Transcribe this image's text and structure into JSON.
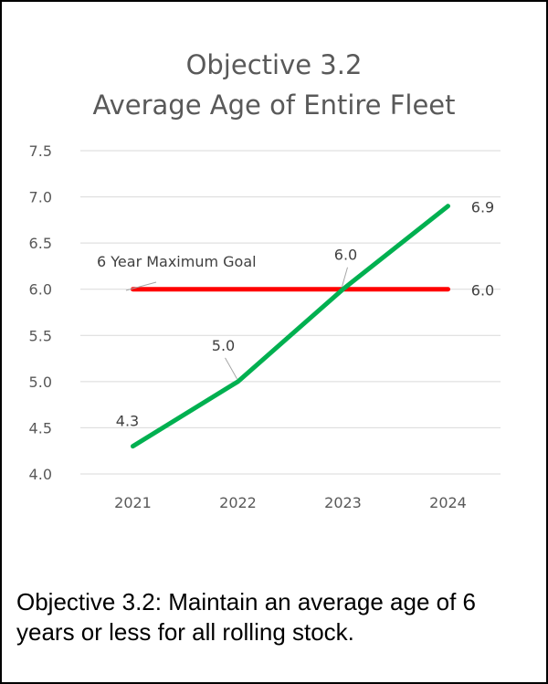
{
  "chart_data": {
    "type": "line",
    "title": "Objective 3.2",
    "subtitle": "Average Age of Entire Fleet",
    "categories": [
      "2021",
      "2022",
      "2023",
      "2024"
    ],
    "y_ticks": [
      "4.0",
      "4.5",
      "5.0",
      "5.5",
      "6.0",
      "6.5",
      "7.0",
      "7.5"
    ],
    "ylim": [
      4.0,
      7.5
    ],
    "grid": true,
    "legend": "none",
    "series": [
      {
        "values": [
          4.3,
          5.0,
          6.0,
          6.9
        ],
        "labels": [
          "4.3",
          "5.0",
          "6.0",
          "6.9"
        ],
        "color": "#00b050"
      },
      {
        "values": [
          6.0,
          6.0,
          6.0,
          6.0
        ],
        "labels": [
          "",
          "",
          "",
          "6.0"
        ],
        "color": "#ff0000"
      }
    ],
    "annotation": "6 Year Maximum Goal"
  },
  "caption": "Objective 3.2: Maintain an average age of 6 years or less for all rolling stock."
}
